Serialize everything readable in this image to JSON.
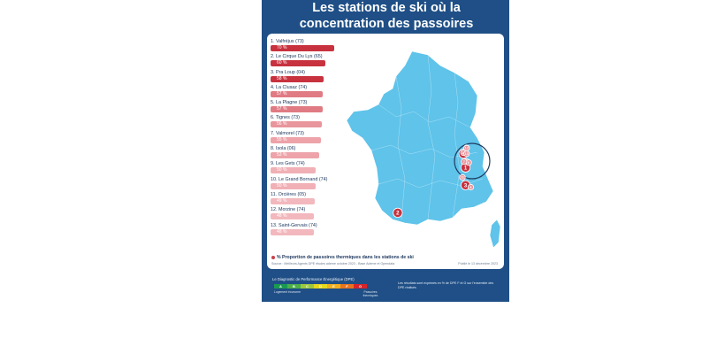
{
  "title": "Les stations de ski où la concentration des passoires thermiques est la plus forte",
  "ranking": [
    {
      "label": "1. Valfréjus (73)",
      "value": "70 %",
      "pct": 70,
      "color": "#c8323f"
    },
    {
      "label": "2. Le Cirque Du Lys (65)",
      "value": "60 %",
      "pct": 60,
      "color": "#c8323f"
    },
    {
      "label": "3. Pra Loup (04)",
      "value": "58 %",
      "pct": 58,
      "color": "#c8323f"
    },
    {
      "label": "4. La Clusaz (74)",
      "value": "57 %",
      "pct": 57,
      "color": "#e07b84"
    },
    {
      "label": "5. La Plagne (73)",
      "value": "57 %",
      "pct": 57,
      "color": "#e07b84"
    },
    {
      "label": "6. Tignes (73)",
      "value": "56 %",
      "pct": 56,
      "color": "#e8959c"
    },
    {
      "label": "7. Valmorel (73)",
      "value": "55 %",
      "pct": 55,
      "color": "#eda3a9"
    },
    {
      "label": "8. Isola (06)",
      "value": "53 %",
      "pct": 53,
      "color": "#eda3a9"
    },
    {
      "label": "9. Les Gets (74)",
      "value": "50 %",
      "pct": 50,
      "color": "#f0b0b5"
    },
    {
      "label": "10. Le Grand Bornand (74)",
      "value": "50 %",
      "pct": 50,
      "color": "#f0b0b5"
    },
    {
      "label": "11. Orcières (05)",
      "value": "49 %",
      "pct": 49,
      "color": "#f2b8bd"
    },
    {
      "label": "12. Morzine (74)",
      "value": "48 %",
      "pct": 48,
      "color": "#f2b8bd"
    },
    {
      "label": "13. Saint-Gervais (74)",
      "value": "48 %",
      "pct": 48,
      "color": "#f2b8bd"
    }
  ],
  "map_markers": [
    {
      "num": "1",
      "lon": 6.6,
      "lat": 45.2,
      "style": "big"
    },
    {
      "num": "2",
      "lon": 0.1,
      "lat": 42.9,
      "style": "big"
    },
    {
      "num": "3",
      "lon": 6.6,
      "lat": 44.3,
      "style": "big"
    },
    {
      "num": "4",
      "lon": 6.4,
      "lat": 45.9,
      "style": "big"
    },
    {
      "num": "5",
      "lon": 6.7,
      "lat": 45.5,
      "style": "small"
    },
    {
      "num": "6",
      "lon": 6.9,
      "lat": 45.45,
      "style": "small"
    },
    {
      "num": "7",
      "lon": 6.45,
      "lat": 45.5,
      "style": "small"
    },
    {
      "num": "8",
      "lon": 7.1,
      "lat": 44.2,
      "style": "small"
    },
    {
      "num": "9",
      "lon": 6.7,
      "lat": 46.2,
      "style": "small"
    },
    {
      "num": "10",
      "lon": 6.4,
      "lat": 45.95,
      "style": "small"
    },
    {
      "num": "11",
      "lon": 6.3,
      "lat": 44.7,
      "style": "small"
    },
    {
      "num": "12",
      "lon": 6.7,
      "lat": 46.18,
      "style": "small"
    },
    {
      "num": "13",
      "lon": 6.7,
      "lat": 45.9,
      "style": "small"
    }
  ],
  "legend_note": "% Proportion de passoires thermiques dans les stations de ski",
  "source": "Source : Meilleurs Agents DPE études ademe octobre 2023 - Base Ademe et Opendata",
  "date": "Publié le 13 décembre 2023",
  "dpe": {
    "title": "Le Diagnostic de Performance Énergétique (DPE)",
    "classes": [
      {
        "letter": "A",
        "color": "#1a9a50"
      },
      {
        "letter": "B",
        "color": "#4db04a"
      },
      {
        "letter": "C",
        "color": "#9dc83d"
      },
      {
        "letter": "D",
        "color": "#e6d81e"
      },
      {
        "letter": "E",
        "color": "#f2b01e"
      },
      {
        "letter": "F",
        "color": "#e8731f"
      },
      {
        "letter": "G",
        "color": "#d6242a"
      }
    ],
    "low_label": "Logement économe",
    "high_label": "Passoires thermiques"
  },
  "footnote": "Les résultats sont exprimés en % de DPE F et G sur l'ensemble des DPE réalisés",
  "colors": {
    "background": "#1f4f86",
    "map_fill": "#5fc3ea",
    "marker_big": "#c8323f",
    "marker_small": "#e8959c"
  }
}
